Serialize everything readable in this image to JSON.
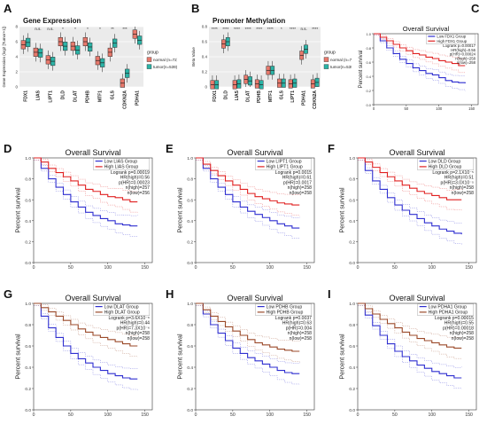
{
  "panels": {
    "A": {
      "letter": "A",
      "chart_data": {
        "type": "box",
        "title": "Gene Expression",
        "ylabel": "Gene Expression (log2 [Tumor+1])",
        "ylim": [
          0,
          8
        ],
        "categories": [
          "FDX1",
          "LIAS",
          "LIPT1",
          "DLD",
          "DLAT",
          "PDHB",
          "MTF1",
          "GLS",
          "CDKN2A",
          "PDHA1"
        ],
        "significance": [
          "",
          "n.s.",
          "n.s.",
          "*",
          "*",
          "*",
          "*",
          "**",
          "***",
          ""
        ],
        "legend_title": "group",
        "series": [
          {
            "name": "normal (n=72)",
            "color": "#e8796c",
            "median": [
              5.6,
              4.6,
              3.6,
              6.0,
              5.4,
              6.0,
              3.5,
              4.6,
              0.5,
              7.0
            ]
          },
          {
            "name": "tumor(n=539)",
            "color": "#2bb3a6",
            "median": [
              5.9,
              4.5,
              3.4,
              5.4,
              4.9,
              5.3,
              3.2,
              5.8,
              1.8,
              6.2
            ]
          }
        ]
      }
    },
    "B": {
      "letter": "B",
      "chart_data": {
        "type": "box",
        "title": "Promoter Methylation",
        "ylabel": "Beta Value",
        "ylim": [
          0,
          0.8
        ],
        "categories": [
          "FDX1",
          "DLD",
          "LIAS",
          "DLAT",
          "PDHB",
          "MTF1",
          "GLS",
          "LIPT1",
          "PDHA1",
          "CDKN2A"
        ],
        "significance": [
          "****",
          "****",
          "****",
          "****",
          "****",
          "****",
          "*",
          "****",
          "n.s.",
          "****"
        ],
        "legend_title": "group",
        "series": [
          {
            "name": "normal (n=72)",
            "color": "#e8796c",
            "median": [
              0.03,
              0.57,
              0.03,
              0.1,
              0.04,
              0.22,
              0.05,
              0.04,
              0.42,
              0.04
            ]
          },
          {
            "name": "tumor(n=539)",
            "color": "#2bb3a6",
            "median": [
              0.03,
              0.6,
              0.04,
              0.08,
              0.03,
              0.22,
              0.05,
              0.05,
              0.5,
              0.06
            ]
          }
        ]
      }
    },
    "C": {
      "letter": "C",
      "chart_data": {
        "type": "line",
        "title": "Overall Survival",
        "ylabel": "Percent survival",
        "xticks": [
          0,
          50,
          100,
          150
        ],
        "yticks": [
          0,
          0.2,
          0.4,
          0.6,
          0.8,
          1.0
        ],
        "xlim": [
          0,
          160
        ],
        "ylim": [
          0,
          1
        ],
        "legend": [
          "Low FDX1 Group",
          "High FDX1 Group"
        ],
        "stats": [
          "Logrank p=0.00017",
          "HR(high)=0.56",
          "p(HR)=0.00024",
          "n(high)=258",
          "n(low)=258"
        ],
        "series": [
          {
            "name": "Low FDX1 Group",
            "color": "#2f2fd0",
            "x": [
              0,
              10,
              20,
              30,
              40,
              50,
              60,
              70,
              80,
              90,
              100,
              110,
              120,
              130,
              140
            ],
            "y": [
              1,
              0.9,
              0.8,
              0.72,
              0.64,
              0.58,
              0.52,
              0.48,
              0.44,
              0.42,
              0.38,
              0.34,
              0.32,
              0.31,
              0.3
            ]
          },
          {
            "name": "High FDX1 Group",
            "color": "#e02020",
            "x": [
              0,
              10,
              20,
              30,
              40,
              50,
              60,
              70,
              80,
              90,
              100,
              110,
              120,
              130,
              140
            ],
            "y": [
              1,
              0.95,
              0.9,
              0.85,
              0.8,
              0.76,
              0.72,
              0.7,
              0.67,
              0.65,
              0.62,
              0.6,
              0.58,
              0.55,
              0.55
            ]
          }
        ]
      }
    },
    "D": {
      "letter": "D",
      "chart_data": {
        "type": "line",
        "title": "Overall Survival",
        "ylabel": "Percent survival",
        "xticks": [
          0,
          50,
          100,
          150
        ],
        "yticks": [
          0,
          0.2,
          0.4,
          0.6,
          0.8,
          1.0
        ],
        "xlim": [
          0,
          160
        ],
        "ylim": [
          0,
          1
        ],
        "legend": [
          "Low LIAS Group",
          "High LIAS Group"
        ],
        "stats": [
          "Logrank p=0.00019",
          "HR(high)=0.56",
          "p(HR)=0.00023",
          "n(high)=257",
          "n(low)=256"
        ],
        "series": [
          {
            "name": "Low LIAS Group",
            "color": "#2f2fd0",
            "x": [
              0,
              10,
              20,
              30,
              40,
              50,
              60,
              70,
              80,
              90,
              100,
              110,
              120,
              130,
              140
            ],
            "y": [
              1,
              0.9,
              0.8,
              0.72,
              0.65,
              0.58,
              0.53,
              0.48,
              0.45,
              0.42,
              0.4,
              0.37,
              0.36,
              0.35,
              0.35
            ]
          },
          {
            "name": "High LIAS Group",
            "color": "#e02020",
            "x": [
              0,
              10,
              20,
              30,
              40,
              50,
              60,
              70,
              80,
              90,
              100,
              110,
              120,
              130,
              140
            ],
            "y": [
              1,
              0.96,
              0.9,
              0.86,
              0.82,
              0.78,
              0.74,
              0.7,
              0.68,
              0.65,
              0.63,
              0.62,
              0.6,
              0.58,
              0.58
            ]
          }
        ]
      }
    },
    "E": {
      "letter": "E",
      "chart_data": {
        "type": "line",
        "title": "Overall Survival",
        "ylabel": "Percent survival",
        "xticks": [
          0,
          50,
          100,
          150
        ],
        "yticks": [
          0,
          0.2,
          0.4,
          0.6,
          0.8,
          1.0
        ],
        "xlim": [
          0,
          160
        ],
        "ylim": [
          0,
          1
        ],
        "legend": [
          "Low LIPT1 Group",
          "High LIPT1 Group"
        ],
        "stats": [
          "Logrank p=0.0015",
          "HR(high)=0.61",
          "p(HR)=0.0017",
          "n(high)=258",
          "n(low)=258"
        ],
        "series": [
          {
            "name": "Low LIPT1 Group",
            "color": "#2f2fd0",
            "x": [
              0,
              10,
              20,
              30,
              40,
              50,
              60,
              70,
              80,
              90,
              100,
              110,
              120,
              130,
              140
            ],
            "y": [
              1,
              0.9,
              0.8,
              0.72,
              0.65,
              0.58,
              0.53,
              0.49,
              0.46,
              0.43,
              0.4,
              0.37,
              0.35,
              0.33,
              0.33
            ]
          },
          {
            "name": "High LIPT1 Group",
            "color": "#e02020",
            "x": [
              0,
              10,
              20,
              30,
              40,
              50,
              60,
              70,
              80,
              90,
              100,
              110,
              120,
              130,
              140
            ],
            "y": [
              1,
              0.94,
              0.88,
              0.83,
              0.78,
              0.74,
              0.7,
              0.66,
              0.63,
              0.61,
              0.59,
              0.57,
              0.56,
              0.55,
              0.55
            ]
          }
        ]
      }
    },
    "F": {
      "letter": "F",
      "chart_data": {
        "type": "line",
        "title": "Overall Survival",
        "ylabel": "Percent survival",
        "xticks": [
          0,
          50,
          100,
          150
        ],
        "yticks": [
          0,
          0.2,
          0.4,
          0.6,
          0.8,
          1.0
        ],
        "xlim": [
          0,
          160
        ],
        "ylim": [
          0,
          1
        ],
        "legend": [
          "Low DLD Group",
          "High DLD Group"
        ],
        "stats": [
          "Logrank p=2.1X10⁻⁵",
          "HR(high)=0.51",
          "p(HR)=3.0X10⁻⁵",
          "n(high)=258",
          "n(low)=258"
        ],
        "series": [
          {
            "name": "Low DLD Group",
            "color": "#2f2fd0",
            "x": [
              0,
              10,
              20,
              30,
              40,
              50,
              60,
              70,
              80,
              90,
              100,
              110,
              120,
              130,
              140
            ],
            "y": [
              1,
              0.88,
              0.78,
              0.7,
              0.62,
              0.55,
              0.5,
              0.46,
              0.42,
              0.38,
              0.35,
              0.32,
              0.3,
              0.28,
              0.27
            ]
          },
          {
            "name": "High DLD Group",
            "color": "#e02020",
            "x": [
              0,
              10,
              20,
              30,
              40,
              50,
              60,
              70,
              80,
              90,
              100,
              110,
              120,
              130,
              140
            ],
            "y": [
              1,
              0.96,
              0.91,
              0.86,
              0.82,
              0.78,
              0.74,
              0.71,
              0.68,
              0.66,
              0.64,
              0.62,
              0.6,
              0.6,
              0.6
            ]
          }
        ]
      }
    },
    "G": {
      "letter": "G",
      "chart_data": {
        "type": "line",
        "title": "Overall Survival",
        "ylabel": "Percent survival",
        "xticks": [
          0,
          50,
          100,
          150
        ],
        "yticks": [
          0,
          0.2,
          0.4,
          0.6,
          0.8,
          1.0
        ],
        "xlim": [
          0,
          160
        ],
        "ylim": [
          0,
          1
        ],
        "legend": [
          "Low DLAT Group",
          "High DLAT Group"
        ],
        "stats": [
          "Logrank p=3.6X10⁻⁶",
          "HR(high)=0.44",
          "p(HR)=7.3X10⁻⁶",
          "n(high)=258",
          "n(low)=258"
        ],
        "series": [
          {
            "name": "Low DLAT Group",
            "color": "#2f2fd0",
            "x": [
              0,
              10,
              20,
              30,
              40,
              50,
              60,
              70,
              80,
              90,
              100,
              110,
              120,
              130,
              140
            ],
            "y": [
              1,
              0.88,
              0.77,
              0.68,
              0.6,
              0.53,
              0.48,
              0.44,
              0.4,
              0.37,
              0.34,
              0.32,
              0.3,
              0.29,
              0.29
            ]
          },
          {
            "name": "High DLAT Group",
            "color": "#9b4a2a",
            "x": [
              0,
              10,
              20,
              30,
              40,
              50,
              60,
              70,
              80,
              90,
              100,
              110,
              120,
              130,
              140
            ],
            "y": [
              1,
              0.96,
              0.92,
              0.88,
              0.84,
              0.8,
              0.76,
              0.73,
              0.7,
              0.68,
              0.66,
              0.64,
              0.62,
              0.6,
              0.6
            ]
          }
        ]
      }
    },
    "H": {
      "letter": "H",
      "chart_data": {
        "type": "line",
        "title": "Overall Survival",
        "ylabel": "Percent survival",
        "xticks": [
          0,
          50,
          100,
          150
        ],
        "yticks": [
          0,
          0.2,
          0.4,
          0.6,
          0.8,
          1.0
        ],
        "xlim": [
          0,
          160
        ],
        "ylim": [
          0,
          1
        ],
        "legend": [
          "Low PDHB Group",
          "High PDHB Group"
        ],
        "stats": [
          "Logrank p=0.0037",
          "HR(high)=0.63",
          "p(HR)=0.004",
          "n(high)=258",
          "n(low)=258"
        ],
        "series": [
          {
            "name": "Low PDHB Group",
            "color": "#2f2fd0",
            "x": [
              0,
              10,
              20,
              30,
              40,
              50,
              60,
              70,
              80,
              90,
              100,
              110,
              120,
              130,
              140
            ],
            "y": [
              1,
              0.9,
              0.8,
              0.72,
              0.65,
              0.58,
              0.53,
              0.49,
              0.46,
              0.43,
              0.4,
              0.37,
              0.35,
              0.34,
              0.34
            ]
          },
          {
            "name": "High PDHB Group",
            "color": "#9b4a2a",
            "x": [
              0,
              10,
              20,
              30,
              40,
              50,
              60,
              70,
              80,
              90,
              100,
              110,
              120,
              130,
              140
            ],
            "y": [
              1,
              0.94,
              0.88,
              0.83,
              0.78,
              0.74,
              0.7,
              0.66,
              0.63,
              0.61,
              0.59,
              0.57,
              0.56,
              0.55,
              0.55
            ]
          }
        ]
      }
    },
    "I": {
      "letter": "I",
      "chart_data": {
        "type": "line",
        "title": "Overall Survival",
        "ylabel": "Percent survival",
        "xticks": [
          0,
          50,
          100,
          150
        ],
        "yticks": [
          0,
          0.2,
          0.4,
          0.6,
          0.8,
          1.0
        ],
        "xlim": [
          0,
          160
        ],
        "ylim": [
          0,
          1
        ],
        "legend": [
          "Low PDHA1 Group",
          "High PDHA1 Group"
        ],
        "stats": [
          "Logrank p=0.00015",
          "HR(high)=0.55",
          "p(HR)=0.00018",
          "n(high)=258",
          "n(low)=258"
        ],
        "series": [
          {
            "name": "Low PDHA1 Group",
            "color": "#2f2fd0",
            "x": [
              0,
              10,
              20,
              30,
              40,
              50,
              60,
              70,
              80,
              90,
              100,
              110,
              120,
              130,
              140
            ],
            "y": [
              1,
              0.89,
              0.79,
              0.7,
              0.62,
              0.55,
              0.5,
              0.46,
              0.42,
              0.39,
              0.36,
              0.34,
              0.32,
              0.3,
              0.3
            ]
          },
          {
            "name": "High PDHA1 Group",
            "color": "#9b4a2a",
            "x": [
              0,
              10,
              20,
              30,
              40,
              50,
              60,
              70,
              80,
              90,
              100,
              110,
              120,
              130,
              140
            ],
            "y": [
              1,
              0.95,
              0.9,
              0.85,
              0.81,
              0.77,
              0.73,
              0.7,
              0.67,
              0.65,
              0.63,
              0.61,
              0.59,
              0.58,
              0.58
            ]
          }
        ]
      }
    }
  }
}
